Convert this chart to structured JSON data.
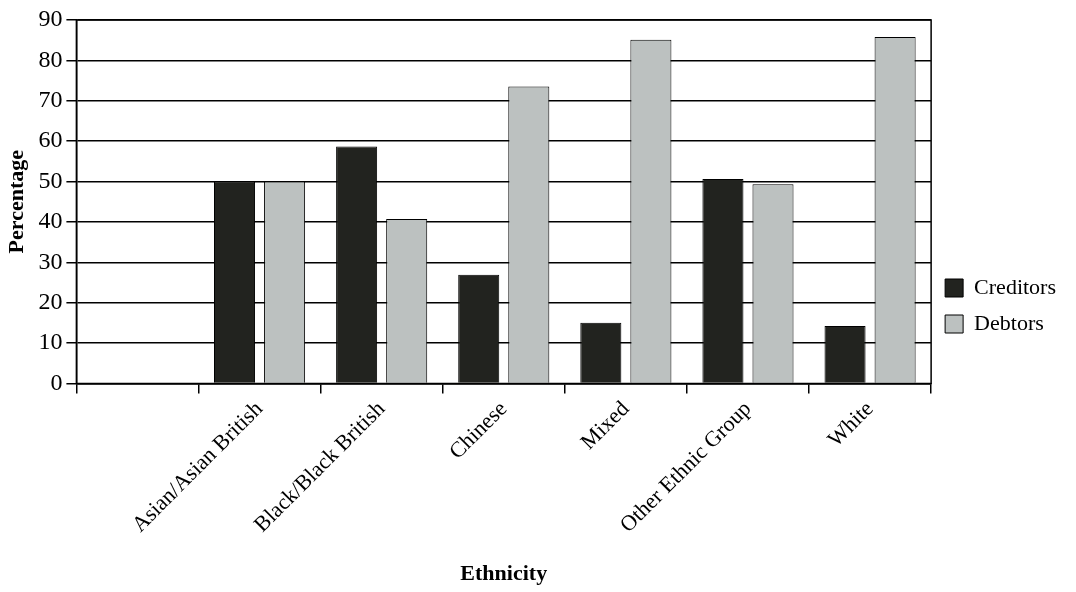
{
  "chart_data": {
    "type": "bar",
    "xlabel": "Ethnicity",
    "ylabel": "Percentage",
    "categories": [
      null,
      "Asian/Asian British",
      "Black/Black British",
      "Chinese",
      "Mixed",
      "Other Ethnic Group",
      "White"
    ],
    "series": [
      {
        "name": "Creditors",
        "color": "#22231f",
        "values": [
          null,
          50,
          58.7,
          26.9,
          15,
          50.6,
          14.2
        ]
      },
      {
        "name": "Debtors",
        "color": "#bcc1c0",
        "values": [
          null,
          50,
          40.7,
          73.5,
          85.1,
          49.3,
          85.8
        ]
      }
    ],
    "ylim": [
      0,
      90
    ],
    "yticks": [
      0,
      10,
      20,
      30,
      40,
      50,
      60,
      70,
      80,
      90
    ],
    "grid": "y",
    "legend": "right"
  }
}
